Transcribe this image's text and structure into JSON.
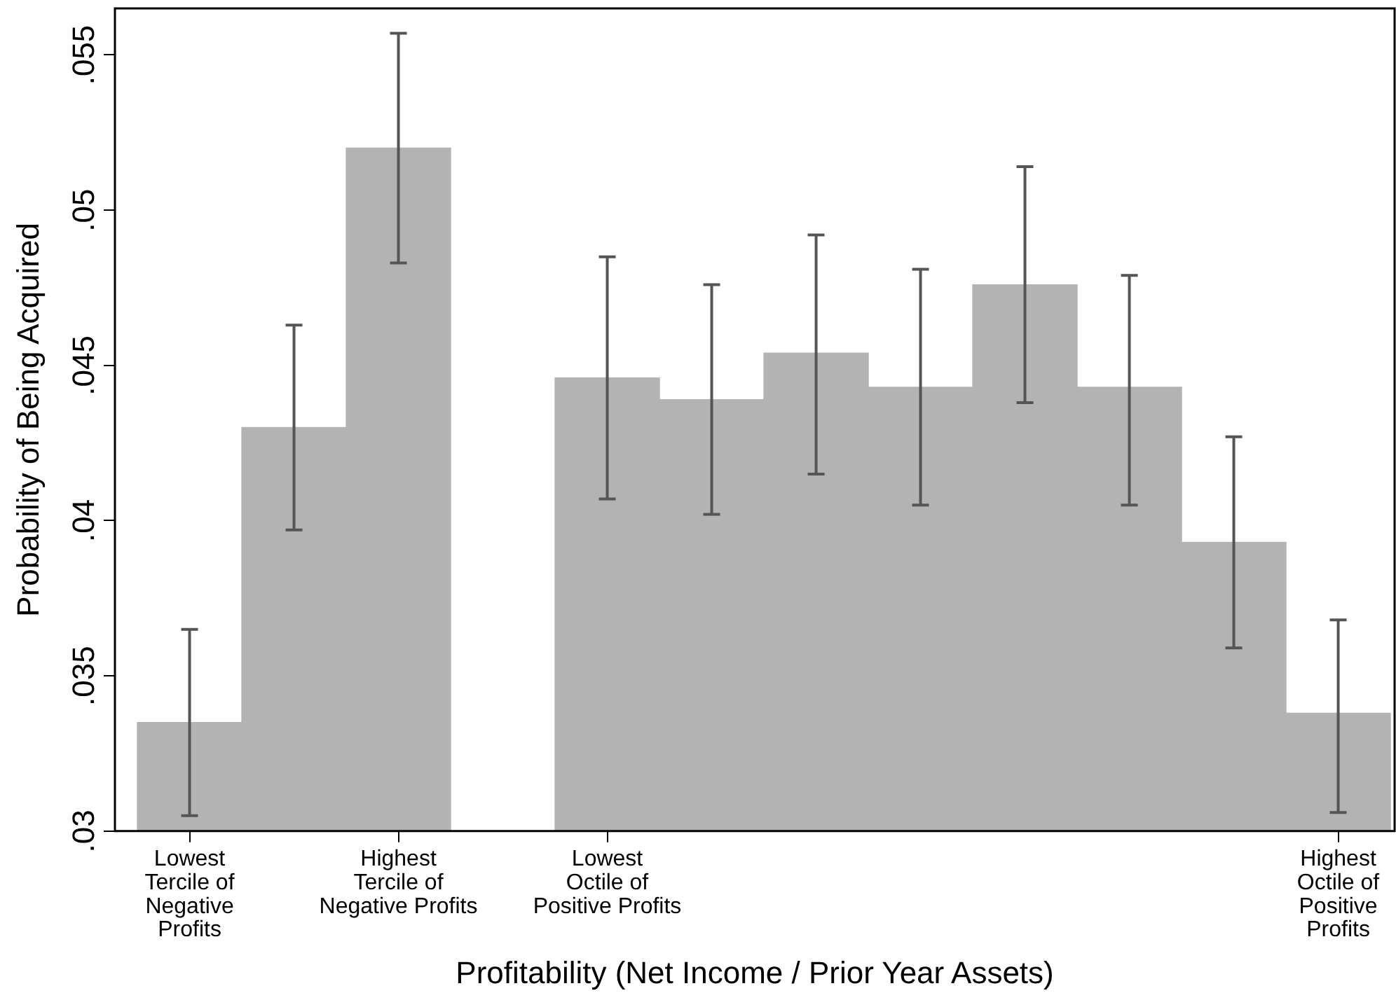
{
  "chart_data": {
    "type": "bar",
    "xlabel": "Profitability (Net Income / Prior Year Assets)",
    "ylabel": "Probability of Being Acquired",
    "categories": [
      "Lowest\nTercile of\nNegative\nProfits",
      null,
      "Highest\nTercile of\nNegative Profits",
      null,
      "Lowest\nOctile of\nPositive Profits",
      null,
      null,
      null,
      null,
      null,
      null,
      "Highest\nOctile of\nPositive\nProfits"
    ],
    "values": [
      0.0335,
      0.043,
      0.052,
      null,
      0.0446,
      0.0439,
      0.0454,
      0.0443,
      0.0476,
      0.0443,
      0.0393,
      0.0338
    ],
    "errors": [
      [
        0.0305,
        0.0365
      ],
      [
        0.0397,
        0.0463
      ],
      [
        0.0483,
        0.0557
      ],
      null,
      [
        0.0407,
        0.0485
      ],
      [
        0.0402,
        0.0476
      ],
      [
        0.0415,
        0.0492
      ],
      [
        0.0405,
        0.0481
      ],
      [
        0.0438,
        0.0514
      ],
      [
        0.0405,
        0.0479
      ],
      [
        0.0359,
        0.0427
      ],
      [
        0.0306,
        0.0368
      ]
    ],
    "color": "#b3b3b3",
    "ylim": [
      0.03,
      0.0565
    ],
    "yticks": [
      {
        "value": 0.03,
        "label": ".03"
      },
      {
        "value": 0.035,
        "label": ".035"
      },
      {
        "value": 0.04,
        "label": ".04"
      },
      {
        "value": 0.045,
        "label": ".045"
      },
      {
        "value": 0.05,
        "label": ".05"
      },
      {
        "value": 0.055,
        "label": ".055"
      }
    ],
    "grid": false,
    "legend": false
  }
}
